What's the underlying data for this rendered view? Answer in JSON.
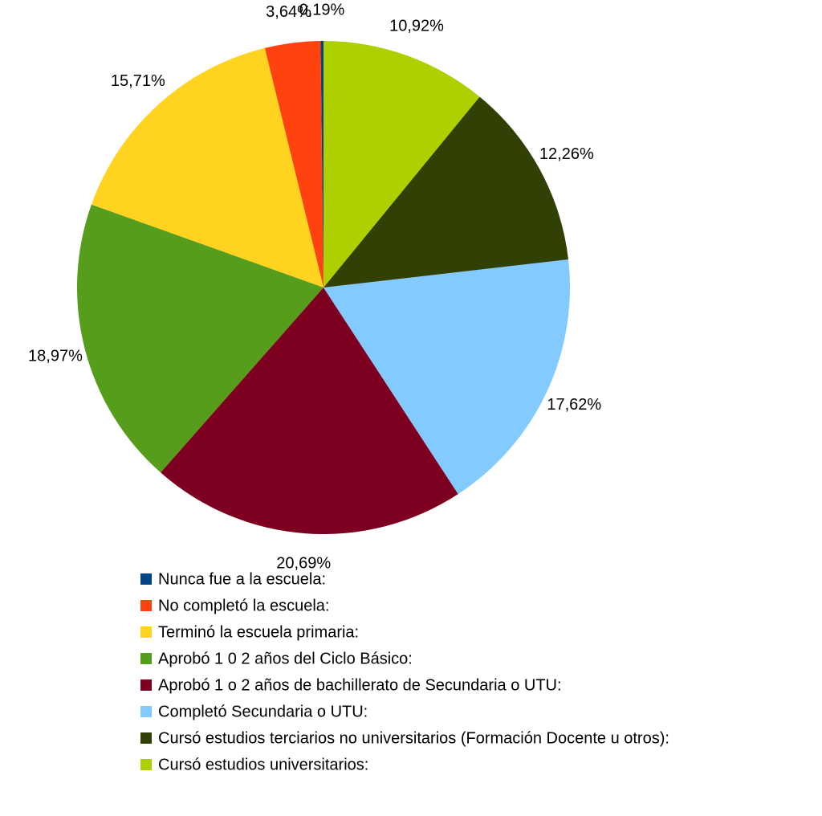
{
  "chart_data": {
    "type": "pie",
    "categories": [
      "Nunca fue a la escuela:",
      "No completó la escuela:",
      "Terminó la escuela primaria:",
      "Aprobó 1 0 2 años del Ciclo Básico:",
      "Aprobó 1 o 2 años de bachillerato de Secundaria o UTU:",
      "Completó Secundaria o UTU:",
      "Cursó estudios terciarios no universitarios (Formación Docente u otros):",
      "Cursó estudios universitarios:"
    ],
    "values": [
      0.19,
      3.64,
      15.71,
      18.97,
      20.69,
      17.62,
      12.26,
      10.92
    ],
    "value_labels": [
      "0,19%",
      "3,64%",
      "15,71%",
      "18,97%",
      "20,69%",
      "17,62%",
      "12,26%",
      "10,92%"
    ],
    "colors": [
      "#004586",
      "#ff420e",
      "#ffd320",
      "#579d1c",
      "#7e0021",
      "#83caff",
      "#314004",
      "#aecf00"
    ],
    "legend": "bottom"
  }
}
